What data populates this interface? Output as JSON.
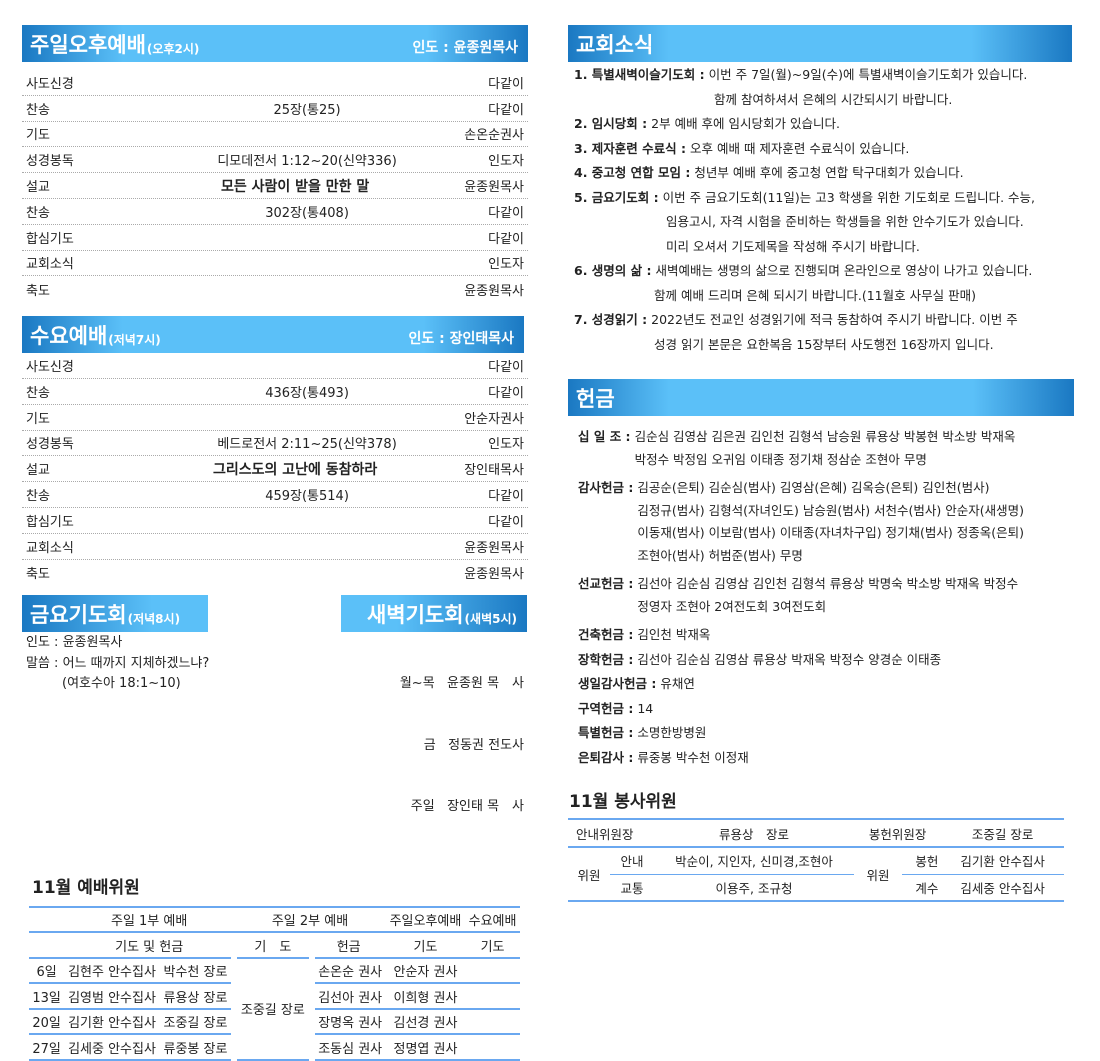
{
  "sunday_pm": {
    "title": "주일오후예배",
    "time": "(오후2시)",
    "leader": "인도 : 윤종원목사",
    "rows": [
      [
        "사도신경",
        "",
        "다같이"
      ],
      [
        "찬송",
        "25장(통25)",
        "다같이"
      ],
      [
        "기도",
        "",
        "손온순권사"
      ],
      [
        "성경봉독",
        "디모데전서 1:12~20(신약336)",
        "인도자"
      ],
      [
        "설교",
        "모든 사람이 받을 만한 말",
        "윤종원목사"
      ],
      [
        "찬송",
        "302장(통408)",
        "다같이"
      ],
      [
        "합심기도",
        "",
        "다같이"
      ],
      [
        "교회소식",
        "",
        "인도자"
      ],
      [
        "축도",
        "",
        "윤종원목사"
      ]
    ]
  },
  "wednesday": {
    "title": "수요예배",
    "time": "(저녁7시)",
    "leader": "인도 : 장인태목사",
    "rows": [
      [
        "사도신경",
        "",
        "다같이"
      ],
      [
        "찬송",
        "436장(통493)",
        "다같이"
      ],
      [
        "기도",
        "",
        "안순자권사"
      ],
      [
        "성경봉독",
        "베드로전서 2:11~25(신약378)",
        "인도자"
      ],
      [
        "설교",
        "그리스도의 고난에 동참하라",
        "장인태목사"
      ],
      [
        "찬송",
        "459장(통514)",
        "다같이"
      ],
      [
        "합심기도",
        "",
        "다같이"
      ],
      [
        "교회소식",
        "",
        "윤종원목사"
      ],
      [
        "축도",
        "",
        "윤종원목사"
      ]
    ]
  },
  "friday": {
    "title": "금요기도회",
    "time": "(저녁8시)",
    "lines": [
      "인도 : 윤종원목사",
      "말씀 : 어느 때까지 지체하겠느냐?",
      "(여호수아 18:1~10)"
    ]
  },
  "dawn": {
    "title": "새벽기도회",
    "time": "(새벽5시)",
    "lines": [
      "월~목   윤종원 목　사",
      "금   정동권 전도사",
      "주일   장인태 목　사"
    ]
  },
  "worship_staff": {
    "title": "11월 예배위원",
    "header1": [
      "주일 1부 예배",
      "주일 2부 예배",
      "주일오후예배",
      "수요예배"
    ],
    "header2": [
      "기도 및 헌금",
      "기　도",
      "헌금",
      "기도",
      "기도"
    ],
    "offering_2nd": "조중길 장로",
    "rows": [
      [
        "6일",
        "김현주 안수집사",
        "박수천 장로",
        "손온순 권사",
        "안순자 권사"
      ],
      [
        "13일",
        "김영범 안수집사",
        "류용상 장로",
        "김선아 권사",
        "이희형 권사"
      ],
      [
        "20일",
        "김기환 안수집사",
        "조중길 장로",
        "장명옥 권사",
        "김선경 권사"
      ],
      [
        "27일",
        "김세중 안수집사",
        "류중봉 장로",
        "조동심 권사",
        "정명엽 권사"
      ]
    ]
  },
  "news": {
    "title": "교회소식",
    "items": [
      {
        "label": "1. 특별새벽이슬기도회 :",
        "lines": [
          "이번 주 7일(월)~9일(수)에 특별새벽이슬기도회가 있습니다.",
          "함께 참여하셔서 은혜의 시간되시기 바랍니다."
        ]
      },
      {
        "label": "2. 임시당회 :",
        "lines": [
          "2부 예배 후에 임시당회가 있습니다."
        ]
      },
      {
        "label": "3. 제자훈련 수료식 :",
        "lines": [
          "오후 예배 때 제자훈련 수료식이 있습니다."
        ]
      },
      {
        "label": "4. 중고청 연합 모임 :",
        "lines": [
          "청년부 예배 후에 중고청 연합 탁구대회가 있습니다."
        ]
      },
      {
        "label": "5. 금요기도회 :",
        "lines": [
          "이번 주 금요기도회(11일)는 고3 학생을 위한 기도회로 드립니다. 수능,",
          "임용고시, 자격 시험을 준비하는 학생들을 위한 안수기도가 있습니다.",
          "미리 오셔서 기도제목을 작성해 주시기 바랍니다."
        ]
      },
      {
        "label": "6. 생명의 삶 :",
        "lines": [
          "새벽예배는 생명의 삶으로 진행되며 온라인으로 영상이 나가고 있습니다.",
          "함께 예배 드리며 은혜 되시기 바랍니다.(11월호 사무실 판매)"
        ]
      },
      {
        "label": "7. 성경읽기 :",
        "lines": [
          "2022년도 전교인 성경읽기에 적극 동참하여 주시기 바랍니다. 이번 주",
          "성경 읽기 본문은 요한복음 15장부터 사도행전 16장까지 입니다."
        ]
      }
    ]
  },
  "offering": {
    "title": "헌금",
    "groups": [
      {
        "label": "십 일 조 :",
        "lines": [
          "김순심 김영삼 김은권 김인천 김형석 남승원 류용상 박봉현 박소방 박재옥",
          "박정수 박정임 오귀임 이태종 정기채 정삼순 조현아 무명"
        ]
      },
      {
        "label": "감사헌금 :",
        "lines": [
          "김공순(은퇴) 김순심(범사) 김영삼(은혜) 김옥승(은퇴) 김인천(범사)",
          "김정규(범사) 김형석(자녀인도) 남승원(범사) 서천수(범사) 안순자(새생명)",
          "이동재(범사) 이보람(범사) 이태종(자녀차구입) 정기채(범사) 정종옥(은퇴)",
          "조현아(범사) 허범준(범사) 무명"
        ]
      },
      {
        "label": "선교헌금 :",
        "lines": [
          "김선아 김순심 김영삼 김인천 김형석 류용상 박명숙 박소방 박재옥 박정수",
          "정영자 조현아 2여전도회 3여전도회"
        ]
      },
      {
        "label": "건축헌금 :",
        "lines": [
          "김인천 박재옥"
        ]
      },
      {
        "label": "장학헌금 :",
        "lines": [
          "김선아 김순심 김영삼 류용상 박재옥 박정수 양경순 이태종"
        ]
      },
      {
        "label": "생일감사헌금 :",
        "lines": [
          "유채연"
        ]
      },
      {
        "label": "구역헌금 :",
        "lines": [
          "14"
        ]
      },
      {
        "label": "특별헌금 :",
        "lines": [
          "소명한방병원"
        ]
      },
      {
        "label": "은퇴감사 :",
        "lines": [
          "류중봉 박수천 이정재"
        ]
      }
    ]
  },
  "service_staff": {
    "title": "11월 봉사위원",
    "guide_head_label": "안내위원장",
    "guide_head": "류용상　장로",
    "offer_head_label": "봉헌위원장",
    "offer_head": "조중길 장로",
    "member_label": "위원",
    "guide_label": "안내",
    "guide": "박순이, 지인자, 신미경,조현아",
    "traffic_label": "교통",
    "traffic": "이용주, 조규청",
    "offer_label": "봉헌",
    "offer": "김기환 안수집사",
    "count_label": "계수",
    "count": "김세중 안수집사"
  },
  "colors": {
    "header_light": "#5bc0f8",
    "header_dark": "#1a78c2",
    "table_line": "#6aa8f0"
  }
}
